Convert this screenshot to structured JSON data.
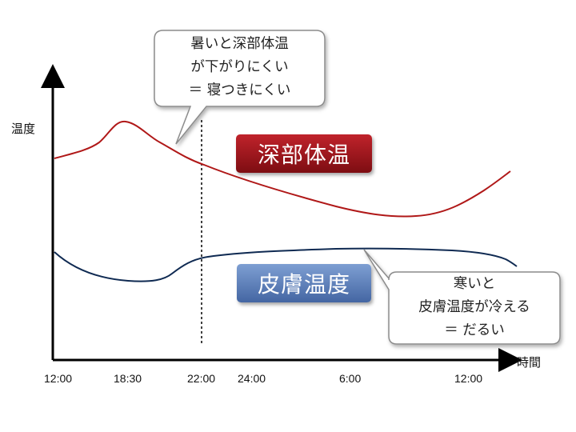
{
  "y_axis_label": "温度",
  "x_axis_label": "時間",
  "x_ticks": [
    "12:00",
    "18:30",
    "22:00",
    "24:00",
    "6:00",
    "12:00"
  ],
  "core_label": "深部体温",
  "skin_label": "皮膚温度",
  "callout_top": {
    "line1": "暑いと深部体温",
    "line2": "が下がりにくい",
    "line3": "＝ 寝つきにくい"
  },
  "callout_bottom": {
    "line1": "寒いと",
    "line2": "皮膚温度が冷える",
    "line3": "＝ だるい"
  },
  "colors": {
    "core": "#b01818",
    "skin": "#0f2a52",
    "core_badge": "#a51a1f",
    "skin_badge": "#5b7fb8"
  }
}
